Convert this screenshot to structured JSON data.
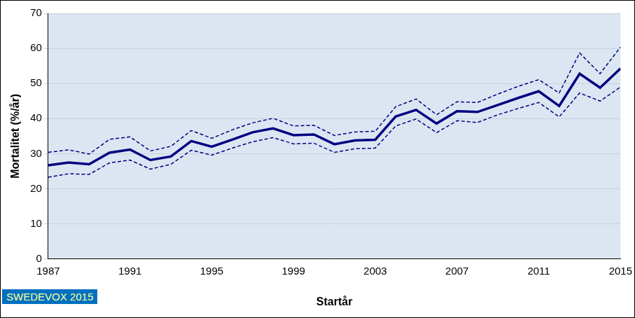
{
  "chart_data": {
    "type": "line",
    "x_label": "Startår",
    "y_label": "Mortalitet (%/år)",
    "annotation": "SWEDEVOX 2015",
    "x": [
      1987,
      1988,
      1989,
      1990,
      1991,
      1992,
      1993,
      1994,
      1995,
      1996,
      1997,
      1998,
      1999,
      2000,
      2001,
      2002,
      2003,
      2004,
      2005,
      2006,
      2007,
      2008,
      2009,
      2010,
      2011,
      2012,
      2013,
      2014,
      2015
    ],
    "series": [
      {
        "color": "#000080",
        "line_style": "solid",
        "values": [
          26.7,
          27.5,
          27.0,
          30.3,
          31.2,
          28.2,
          29.2,
          33.6,
          32.0,
          34.0,
          36.1,
          37.2,
          35.3,
          35.5,
          32.7,
          33.8,
          34.0,
          40.6,
          42.5,
          38.6,
          42.1,
          41.9,
          43.9,
          45.9,
          47.8,
          43.6,
          52.8,
          48.8,
          54.3
        ]
      },
      {
        "color": "#000080",
        "line_style": "dashed",
        "values": [
          30.4,
          31.1,
          29.9,
          34.1,
          34.8,
          30.8,
          32.1,
          36.6,
          34.4,
          36.8,
          38.8,
          40.1,
          37.9,
          38.1,
          35.2,
          36.2,
          36.4,
          43.4,
          45.6,
          41.1,
          44.8,
          44.6,
          47.0,
          49.2,
          51.1,
          47.3,
          58.7,
          52.8,
          60.4
        ]
      },
      {
        "color": "#000080",
        "line_style": "dashed",
        "values": [
          23.3,
          24.3,
          24.1,
          27.4,
          28.2,
          25.6,
          27.0,
          31.0,
          29.6,
          31.6,
          33.4,
          34.6,
          32.8,
          33.0,
          30.4,
          31.4,
          31.6,
          37.9,
          39.9,
          36.0,
          39.4,
          38.9,
          41.1,
          42.9,
          44.6,
          40.5,
          47.3,
          45.0,
          49.0
        ]
      }
    ],
    "xlim": [
      1987,
      2015
    ],
    "xticks": [
      1987,
      1991,
      1995,
      1999,
      2003,
      2007,
      2011,
      2015
    ],
    "ylim": [
      0,
      70
    ],
    "yticks": [
      0,
      10,
      20,
      30,
      40,
      50,
      60,
      70
    ],
    "grid": true
  }
}
